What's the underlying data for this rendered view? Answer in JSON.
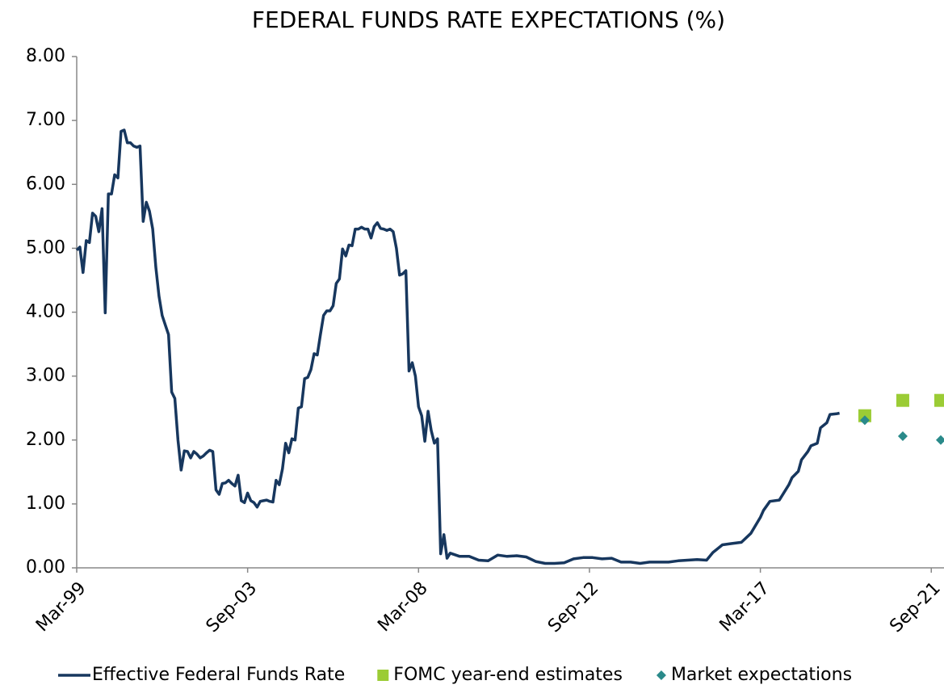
{
  "chart_data": {
    "type": "line",
    "title": "FEDERAL FUNDS RATE EXPECTATIONS (%)",
    "xlim": [
      "1999-03",
      "2021-12"
    ],
    "xticks": [
      {
        "value": "1999-03",
        "label": "Mar-99"
      },
      {
        "value": "2003-09",
        "label": "Sep-03"
      },
      {
        "value": "2008-03",
        "label": "Mar-08"
      },
      {
        "value": "2012-09",
        "label": "Sep-12"
      },
      {
        "value": "2017-03",
        "label": "Mar-17"
      },
      {
        "value": "2021-09",
        "label": "Sep-21"
      }
    ],
    "ylim": [
      0,
      8
    ],
    "yticks": [
      {
        "value": 0,
        "label": "0.00"
      },
      {
        "value": 1,
        "label": "1.00"
      },
      {
        "value": 2,
        "label": "2.00"
      },
      {
        "value": 3,
        "label": "3.00"
      },
      {
        "value": 4,
        "label": "4.00"
      },
      {
        "value": 5,
        "label": "5.00"
      },
      {
        "value": 6,
        "label": "6.00"
      },
      {
        "value": 7,
        "label": "7.00"
      },
      {
        "value": 8,
        "label": "8.00"
      }
    ],
    "grid": false,
    "legend": "bottom",
    "series": [
      {
        "name": "Effective Federal Funds Rate",
        "type": "line",
        "color": "#17375e",
        "x": [
          "1999-03",
          "1999-04",
          "1999-05",
          "1999-06",
          "1999-07",
          "1999-08",
          "1999-09",
          "1999-10",
          "1999-11",
          "1999-12",
          "2000-01",
          "2000-02",
          "2000-03",
          "2000-04",
          "2000-05",
          "2000-06",
          "2000-07",
          "2000-08",
          "2000-09",
          "2000-10",
          "2000-11",
          "2000-12",
          "2001-01",
          "2001-02",
          "2001-03",
          "2001-04",
          "2001-05",
          "2001-06",
          "2001-07",
          "2001-08",
          "2001-09",
          "2001-10",
          "2001-11",
          "2001-12",
          "2002-01",
          "2002-02",
          "2002-03",
          "2002-04",
          "2002-05",
          "2002-06",
          "2002-07",
          "2002-08",
          "2002-09",
          "2002-10",
          "2002-11",
          "2002-12",
          "2003-01",
          "2003-02",
          "2003-03",
          "2003-04",
          "2003-05",
          "2003-06",
          "2003-07",
          "2003-08",
          "2003-09",
          "2003-10",
          "2003-11",
          "2003-12",
          "2004-01",
          "2004-02",
          "2004-03",
          "2004-04",
          "2004-05",
          "2004-06",
          "2004-07",
          "2004-08",
          "2004-09",
          "2004-10",
          "2004-11",
          "2004-12",
          "2005-01",
          "2005-02",
          "2005-03",
          "2005-04",
          "2005-05",
          "2005-06",
          "2005-07",
          "2005-08",
          "2005-09",
          "2005-10",
          "2005-11",
          "2005-12",
          "2006-01",
          "2006-02",
          "2006-03",
          "2006-04",
          "2006-05",
          "2006-06",
          "2006-07",
          "2006-08",
          "2006-09",
          "2006-10",
          "2006-11",
          "2006-12",
          "2007-01",
          "2007-02",
          "2007-03",
          "2007-04",
          "2007-05",
          "2007-06",
          "2007-07",
          "2007-08",
          "2007-09",
          "2007-10",
          "2007-11",
          "2007-12",
          "2008-01",
          "2008-02",
          "2008-03",
          "2008-04",
          "2008-05",
          "2008-06",
          "2008-07",
          "2008-08",
          "2008-09",
          "2008-10",
          "2008-11",
          "2008-12",
          "2009-01",
          "2009-04",
          "2009-07",
          "2009-10",
          "2010-01",
          "2010-04",
          "2010-07",
          "2010-10",
          "2011-01",
          "2011-04",
          "2011-07",
          "2011-10",
          "2012-01",
          "2012-04",
          "2012-07",
          "2012-10",
          "2013-01",
          "2013-04",
          "2013-07",
          "2013-10",
          "2014-01",
          "2014-04",
          "2014-07",
          "2014-10",
          "2015-01",
          "2015-04",
          "2015-07",
          "2015-10",
          "2015-12",
          "2016-03",
          "2016-06",
          "2016-09",
          "2016-12",
          "2017-03",
          "2017-04",
          "2017-06",
          "2017-09",
          "2017-12",
          "2018-01",
          "2018-03",
          "2018-04",
          "2018-06",
          "2018-07",
          "2018-09",
          "2018-10",
          "2018-12",
          "2019-01",
          "2019-03",
          "2019-04"
        ],
        "values": [
          4.97,
          5.02,
          4.62,
          5.12,
          5.09,
          5.55,
          5.5,
          5.26,
          5.62,
          3.99,
          5.85,
          5.85,
          6.15,
          6.1,
          6.83,
          6.85,
          6.65,
          6.65,
          6.6,
          6.58,
          6.6,
          5.42,
          5.72,
          5.58,
          5.3,
          4.7,
          4.25,
          3.95,
          3.8,
          3.65,
          2.75,
          2.65,
          2.0,
          1.53,
          1.83,
          1.82,
          1.72,
          1.82,
          1.78,
          1.72,
          1.75,
          1.8,
          1.84,
          1.82,
          1.22,
          1.15,
          1.32,
          1.33,
          1.37,
          1.32,
          1.28,
          1.45,
          1.05,
          1.02,
          1.17,
          1.05,
          1.02,
          0.95,
          1.04,
          1.05,
          1.06,
          1.04,
          1.03,
          1.37,
          1.3,
          1.55,
          1.95,
          1.8,
          2.02,
          2.0,
          2.5,
          2.52,
          2.96,
          2.98,
          3.1,
          3.35,
          3.33,
          3.65,
          3.95,
          4.02,
          4.02,
          4.1,
          4.45,
          4.52,
          4.99,
          4.88,
          5.05,
          5.04,
          5.3,
          5.3,
          5.33,
          5.3,
          5.3,
          5.16,
          5.34,
          5.4,
          5.31,
          5.3,
          5.28,
          5.3,
          5.26,
          5.0,
          4.58,
          4.6,
          4.65,
          3.08,
          3.21,
          3.0,
          2.52,
          2.38,
          1.98,
          2.45,
          2.15,
          1.95,
          2.02,
          0.22,
          0.52,
          0.15,
          0.23,
          0.18,
          0.18,
          0.12,
          0.11,
          0.2,
          0.18,
          0.19,
          0.17,
          0.1,
          0.07,
          0.07,
          0.08,
          0.14,
          0.16,
          0.16,
          0.14,
          0.15,
          0.09,
          0.09,
          0.07,
          0.09,
          0.09,
          0.09,
          0.11,
          0.12,
          0.13,
          0.12,
          0.24,
          0.36,
          0.38,
          0.4,
          0.54,
          0.79,
          0.9,
          1.04,
          1.06,
          1.3,
          1.41,
          1.51,
          1.69,
          1.82,
          1.91,
          1.95,
          2.19,
          2.27,
          2.4,
          2.41,
          2.42
        ]
      },
      {
        "name": "FOMC year-end estimates",
        "type": "square",
        "color": "#9bcc35",
        "x": [
          "2019-12",
          "2020-12",
          "2021-12"
        ],
        "values": [
          2.38,
          2.62,
          2.62
        ]
      },
      {
        "name": "Market expectations",
        "type": "diamond",
        "color": "#2a8a8a",
        "x": [
          "2019-12",
          "2020-12",
          "2021-12"
        ],
        "values": [
          2.31,
          2.06,
          2.0
        ]
      }
    ]
  }
}
